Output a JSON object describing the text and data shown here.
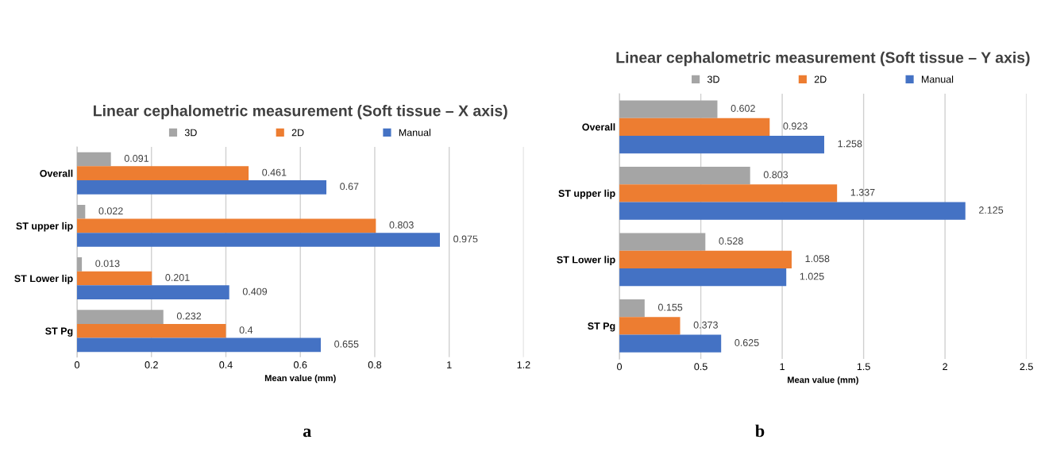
{
  "chart_data": [
    {
      "type": "bar",
      "orientation": "horizontal",
      "title": "Linear cephalometric measurement (Soft tissue – X axis)",
      "xlabel": "Mean value (mm)",
      "categories": [
        "Overall",
        "ST upper lip",
        "ST Lower lip",
        "ST Pg"
      ],
      "series": [
        {
          "name": "3D",
          "color": "#a5a5a5",
          "values": [
            0.091,
            0.022,
            0.013,
            0.232
          ]
        },
        {
          "name": "2D",
          "color": "#ed7d31",
          "values": [
            0.461,
            0.803,
            0.201,
            0.4
          ]
        },
        {
          "name": "Manual",
          "color": "#4472c4",
          "values": [
            0.67,
            0.975,
            0.409,
            0.655
          ]
        }
      ],
      "xlim": [
        0,
        1.2
      ],
      "xticks": [
        0,
        0.2,
        0.4,
        0.6,
        0.8,
        1,
        1.2
      ],
      "grid": "x",
      "legend": "top",
      "data_labels": true,
      "annotations": [
        "a"
      ]
    },
    {
      "type": "bar",
      "orientation": "horizontal",
      "title": "Linear cephalometric measurement (Soft tissue – Y axis)",
      "xlabel": "Mean value (mm)",
      "categories": [
        "Overall",
        "ST upper lip",
        "ST Lower lip",
        "ST Pg"
      ],
      "series": [
        {
          "name": "3D",
          "color": "#a5a5a5",
          "values": [
            0.602,
            0.803,
            0.528,
            0.155
          ]
        },
        {
          "name": "2D",
          "color": "#ed7d31",
          "values": [
            0.923,
            1.337,
            1.058,
            0.373
          ]
        },
        {
          "name": "Manual",
          "color": "#4472c4",
          "values": [
            1.258,
            2.125,
            1.025,
            0.625
          ]
        }
      ],
      "xlim": [
        0,
        2.5
      ],
      "xticks": [
        0,
        0.5,
        1,
        1.5,
        2,
        2.5
      ],
      "grid": "x",
      "legend": "top",
      "data_labels": true,
      "annotations": [
        "b"
      ]
    }
  ]
}
